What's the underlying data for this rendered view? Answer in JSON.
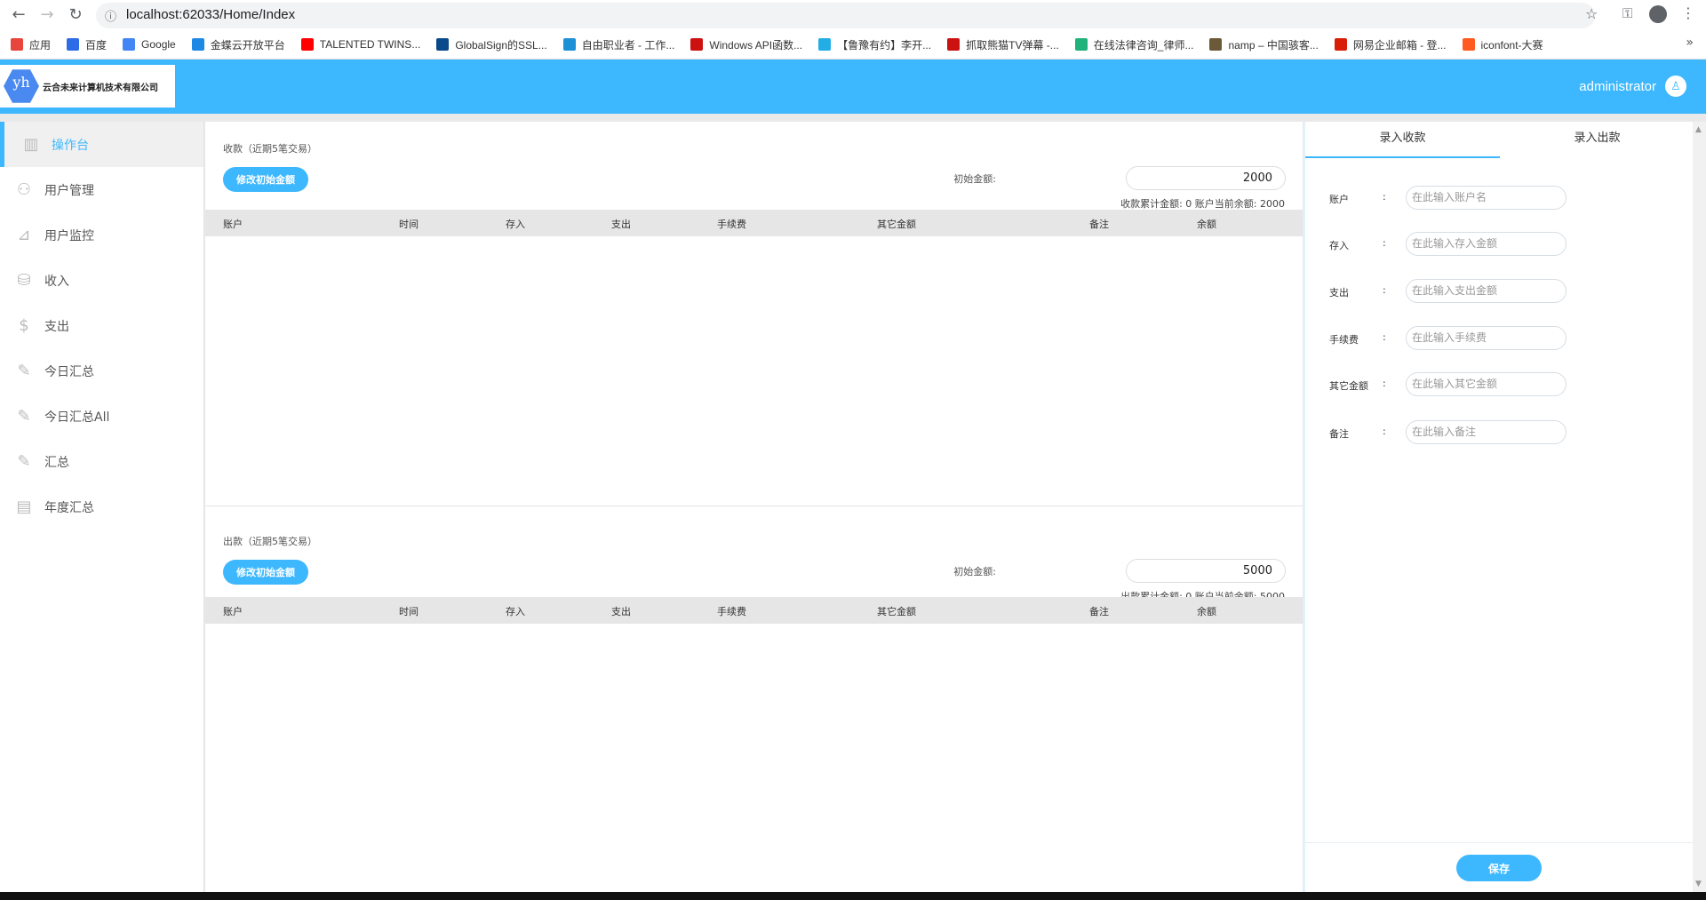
{
  "browser": {
    "url": "localhost:62033/Home/Index",
    "bookmarks": [
      {
        "label": "应用",
        "color": "#e8453c"
      },
      {
        "label": "百度",
        "color": "#2e6be6"
      },
      {
        "label": "Google",
        "color": "#4285f4"
      },
      {
        "label": "金蝶云开放平台",
        "color": "#1e88e5"
      },
      {
        "label": "TALENTED TWINS...",
        "color": "#ff0000"
      },
      {
        "label": "GlobalSign的SSL...",
        "color": "#0b4a8a"
      },
      {
        "label": "自由职业者 - 工作...",
        "color": "#1e90d6"
      },
      {
        "label": "Windows API函数...",
        "color": "#cc1111"
      },
      {
        "label": "【鲁豫有约】李开...",
        "color": "#23ade5"
      },
      {
        "label": "抓取熊猫TV弹幕 -...",
        "color": "#cc1111"
      },
      {
        "label": "在线法律咨询_律师...",
        "color": "#20b27a"
      },
      {
        "label": "namp – 中国骇客...",
        "color": "#6b5a3a"
      },
      {
        "label": "网易企业邮箱 - 登...",
        "color": "#d81e06"
      },
      {
        "label": "iconfont-大赛",
        "color": "#ff5a1f"
      }
    ],
    "more": "»"
  },
  "header": {
    "logo_text": "yh",
    "company": "云合未来计算机技术有限公司",
    "user": "administrator"
  },
  "sidebar": {
    "items": [
      {
        "label": "操作台",
        "icon": "dashboard-icon",
        "glyph": "▥"
      },
      {
        "label": "用户管理",
        "icon": "users-icon",
        "glyph": "⚇"
      },
      {
        "label": "用户监控",
        "icon": "monitor-icon",
        "glyph": "⊿"
      },
      {
        "label": "收入",
        "icon": "coins-icon",
        "glyph": "⛁"
      },
      {
        "label": "支出",
        "icon": "dollar-icon",
        "glyph": "$"
      },
      {
        "label": "今日汇总",
        "icon": "report-icon",
        "glyph": "✎"
      },
      {
        "label": "今日汇总All",
        "icon": "report-icon",
        "glyph": "✎"
      },
      {
        "label": "汇总",
        "icon": "report-icon",
        "glyph": "✎"
      },
      {
        "label": "年度汇总",
        "icon": "chart-board-icon",
        "glyph": "▤"
      }
    ]
  },
  "income": {
    "title": "收款（近期5笔交易）",
    "button": "修改初始金额",
    "init_label": "初始金额:",
    "init_value": "2000",
    "summary": "收款累计金额:  0   账户当前余额:  2000"
  },
  "expense": {
    "title": "出款（近期5笔交易）",
    "button": "修改初始金额",
    "init_label": "初始金额:",
    "init_value": "5000",
    "summary": "出款累计金额:  0   账户当前余额:  5000"
  },
  "columns": [
    "账户",
    "时间",
    "存入",
    "支出",
    "手续费",
    "其它金额",
    "备注",
    "余额"
  ],
  "form": {
    "tabs": [
      "录入收款",
      "录入出款"
    ],
    "fields": [
      {
        "label": "账户",
        "placeholder": "在此输入账户名"
      },
      {
        "label": "存入",
        "placeholder": "在此输入存入金额"
      },
      {
        "label": "支出",
        "placeholder": "在此输入支出金额"
      },
      {
        "label": "手续费",
        "placeholder": "在此输入手续费"
      },
      {
        "label": "其它金额",
        "placeholder": "在此输入其它金额"
      },
      {
        "label": "备注",
        "placeholder": "在此输入备注"
      }
    ],
    "colon": ":",
    "save": "保存"
  },
  "colors": {
    "accent": "#3db8fe"
  }
}
